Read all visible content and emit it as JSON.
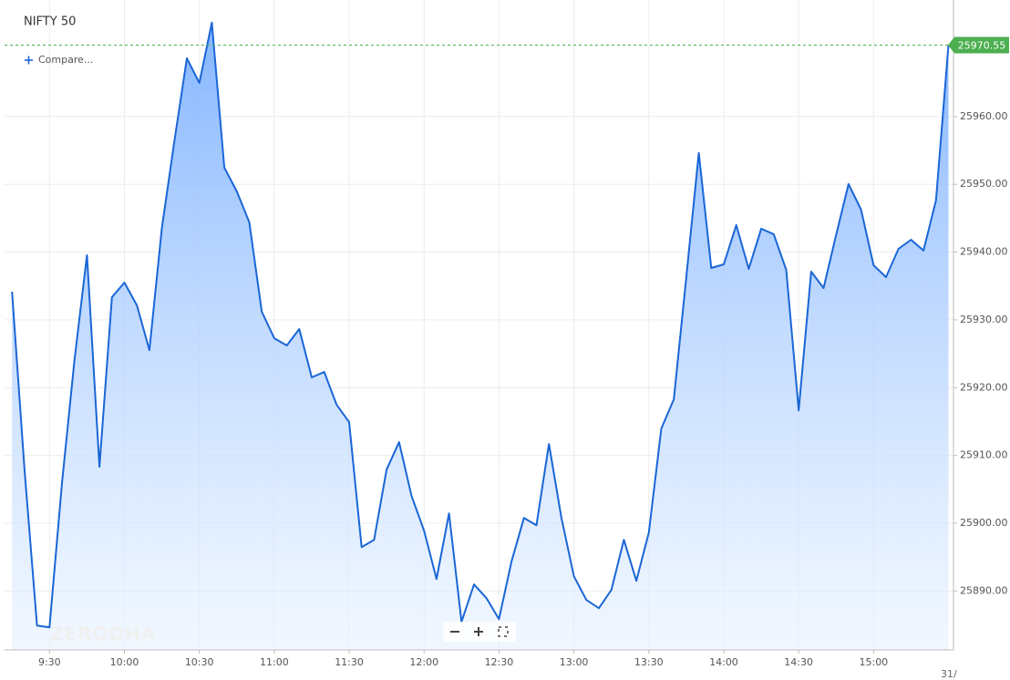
{
  "chart_data": {
    "type": "area",
    "title": "NIFTY 50",
    "compare_label": "Compare...",
    "watermark": "ZERODHA",
    "date_label": "31/",
    "color": "#1a66d6",
    "grid": true,
    "x": [
      "9:15",
      "9:20",
      "9:25",
      "9:30",
      "9:35",
      "9:40",
      "9:45",
      "9:50",
      "9:55",
      "10:00",
      "10:05",
      "10:10",
      "10:15",
      "10:20",
      "10:25",
      "10:30",
      "10:35",
      "10:40",
      "10:45",
      "10:50",
      "10:55",
      "11:00",
      "11:05",
      "11:10",
      "11:15",
      "11:20",
      "11:25",
      "11:30",
      "11:35",
      "11:40",
      "11:45",
      "11:50",
      "11:55",
      "12:00",
      "12:05",
      "12:10",
      "12:15",
      "12:20",
      "12:25",
      "12:30",
      "12:35",
      "12:40",
      "12:45",
      "12:50",
      "12:55",
      "13:00",
      "13:05",
      "13:10",
      "13:15",
      "13:20",
      "13:25",
      "13:30",
      "13:35",
      "13:40",
      "13:45",
      "13:50",
      "13:55",
      "14:00",
      "14:05",
      "14:10",
      "14:15",
      "14:20",
      "14:25",
      "14:30",
      "14:35",
      "14:40",
      "14:45",
      "14:50",
      "14:55",
      "15:00",
      "15:05",
      "15:10",
      "15:15",
      "15:20",
      "15:25",
      "15:30"
    ],
    "values": [
      25934.16,
      25907.91,
      25884.9,
      25884.63,
      25905.9,
      25924.06,
      25939.54,
      25908.32,
      25933.35,
      25935.5,
      25932.14,
      25925.54,
      25943.58,
      25956.37,
      25968.61,
      25964.98,
      25973.86,
      25952.46,
      25948.96,
      25944.39,
      25931.2,
      25927.29,
      25926.22,
      25928.64,
      25921.51,
      25922.31,
      25917.47,
      25914.91,
      25896.47,
      25897.55,
      25907.91,
      25911.95,
      25904.01,
      25898.9,
      25891.76,
      25901.45,
      25885.44,
      25890.96,
      25888.94,
      25885.84,
      25894.32,
      25900.78,
      25899.7,
      25911.68,
      25900.78,
      25892.17,
      25888.67,
      25887.46,
      25890.15,
      25897.55,
      25891.49,
      25898.63,
      25913.97,
      25918.28,
      25936.31,
      25954.62,
      25937.66,
      25938.2,
      25943.98,
      25937.52,
      25943.45,
      25942.64,
      25937.39,
      25916.66,
      25937.12,
      25934.7,
      25942.5,
      25950.04,
      25946.27,
      25938.06,
      25936.31,
      25940.48,
      25941.83,
      25940.22,
      25947.62,
      25970.55
    ],
    "xlim": [
      "9:12",
      "15:32"
    ],
    "xticks": [
      "9:30",
      "10:00",
      "10:30",
      "11:00",
      "11:30",
      "12:00",
      "12:30",
      "13:00",
      "13:30",
      "14:00",
      "14:30",
      "15:00"
    ],
    "ylim": [
      25881.3,
      25977.2
    ],
    "yticks": [
      {
        "value": 25890,
        "label": "25890.00"
      },
      {
        "value": 25900,
        "label": "25900.00"
      },
      {
        "value": 25910,
        "label": "25910.00"
      },
      {
        "value": 25920,
        "label": "25920.00"
      },
      {
        "value": 25930,
        "label": "25930.00"
      },
      {
        "value": 25940,
        "label": "25940.00"
      },
      {
        "value": 25950,
        "label": "25950.00"
      },
      {
        "value": 25960,
        "label": "25960.00"
      }
    ]
  }
}
